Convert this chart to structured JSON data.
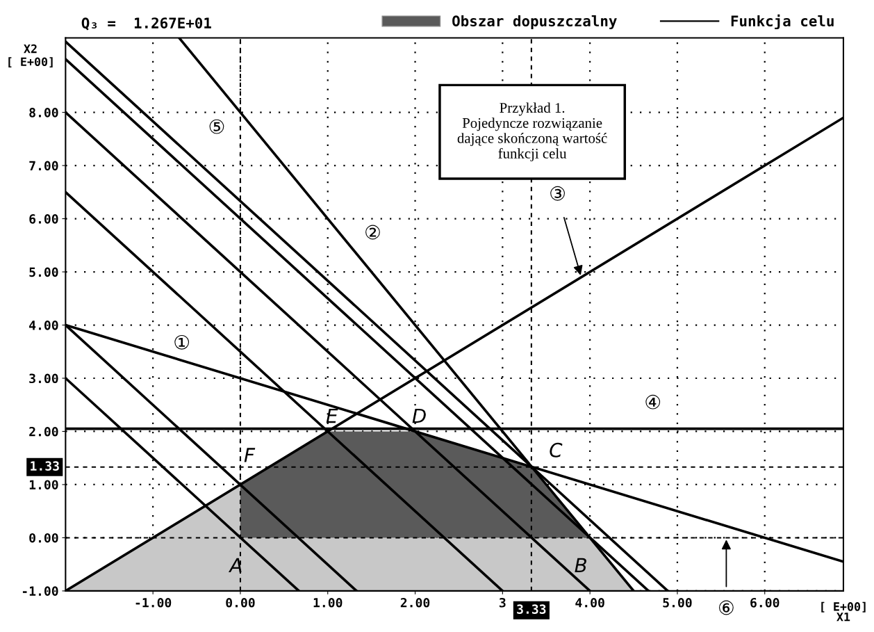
{
  "chart_data": {
    "type": "line",
    "title": "Q₃ =  1.267E+01",
    "xlabel": "[ E+00]\nX1",
    "ylabel": "X2\n[ E+00]",
    "xlim": [
      -2,
      6.9
    ],
    "ylim": [
      -1,
      9.4
    ],
    "xticks": [
      {
        "value": -1,
        "label": "-1.00"
      },
      {
        "value": 0,
        "label": "0.00"
      },
      {
        "value": 1,
        "label": "1.00"
      },
      {
        "value": 2,
        "label": "2.00"
      },
      {
        "value": 3,
        "label": "3"
      },
      {
        "value": 4,
        "label": "4.00"
      },
      {
        "value": 5,
        "label": "5.00"
      },
      {
        "value": 6,
        "label": "6.00"
      }
    ],
    "yticks": [
      {
        "value": -1,
        "label": "-1.00"
      },
      {
        "value": 0,
        "label": "0.00"
      },
      {
        "value": 1,
        "label": "1.00"
      },
      {
        "value": 2,
        "label": "2.00"
      },
      {
        "value": 3,
        "label": "3.00"
      },
      {
        "value": 4,
        "label": "4.00"
      },
      {
        "value": 5,
        "label": "5.00"
      },
      {
        "value": 6,
        "label": "6.00"
      },
      {
        "value": 7,
        "label": "7.00"
      },
      {
        "value": 8,
        "label": "8.00"
      }
    ],
    "grid": true,
    "legend": "top",
    "series": [
      {
        "type": "area",
        "color": "#c8c8c8",
        "x": [
          -2,
          0,
          0,
          4,
          4.5
        ],
        "values": [
          -1,
          1,
          0,
          0,
          -1
        ]
      },
      {
        "type": "area",
        "name": "Obszar dopuszczalny",
        "color": "#5a5a5a",
        "x": [
          0,
          0,
          1,
          2,
          3.33,
          4
        ],
        "values": [
          0,
          1,
          2,
          2,
          1.33,
          0
        ]
      },
      {
        "color": "#000000",
        "x": [
          -2,
          6.9
        ],
        "values": [
          4,
          -0.45
        ]
      },
      {
        "color": "#000000",
        "x": [
          -0.7,
          4.5
        ],
        "values": [
          9.4,
          -1
        ]
      },
      {
        "color": "#000000",
        "x": [
          -2,
          6.9
        ],
        "values": [
          -1,
          7.9
        ]
      },
      {
        "color": "#000000",
        "x": [
          -2,
          6.9
        ],
        "values": [
          2.05,
          2.05
        ]
      },
      {
        "color": "#000000",
        "x": [
          -2,
          0.67
        ],
        "values": [
          3,
          -1
        ]
      },
      {
        "color": "#000000",
        "x": [
          -2,
          1.33
        ],
        "values": [
          4,
          -1
        ]
      },
      {
        "color": "#000000",
        "x": [
          -2,
          3
        ],
        "values": [
          6.5,
          -1
        ]
      },
      {
        "color": "#000000",
        "x": [
          -2,
          4
        ],
        "values": [
          8,
          -1
        ]
      },
      {
        "color": "#000000",
        "x": [
          -2,
          4.67
        ],
        "values": [
          9,
          -1
        ]
      },
      {
        "name": "Funkcja celu",
        "color": "#000000",
        "x": [
          -2,
          4.89
        ],
        "values": [
          9.33,
          -1
        ]
      }
    ],
    "ref_lines": [
      {
        "axis": "x",
        "value": 3.33,
        "label": "3.33",
        "line_style": "dashed"
      },
      {
        "axis": "y",
        "value": 1.33,
        "label": "1.33",
        "line_style": "dashed"
      },
      {
        "axis": "x",
        "value": 0,
        "line_style": "dashed"
      },
      {
        "axis": "y",
        "value": 0,
        "line_style": "dashed"
      }
    ],
    "annotations": [
      "Przykład 1.\nPojedyncze rozwiązanie\ndające skończoną wartość\nfunkcji celu",
      {
        "text": "①",
        "x": -0.67,
        "y": 3.33
      },
      {
        "text": "②",
        "x": 1.3,
        "y": 5.4
      },
      {
        "text": "③",
        "x": 3.9,
        "y": 4.9
      },
      {
        "text": "④",
        "x": 4.72,
        "y": 2.05
      },
      {
        "text": "⑤",
        "x": 0,
        "y": 7.7
      },
      {
        "text": "⑥",
        "x": 5.56,
        "y": 0
      },
      {
        "text": "A",
        "x": 0,
        "y": 0
      },
      {
        "text": "B",
        "x": 4,
        "y": 0
      },
      {
        "text": "C",
        "x": 3.33,
        "y": 1.33
      },
      {
        "text": "D",
        "x": 2,
        "y": 2
      },
      {
        "text": "E",
        "x": 1,
        "y": 2
      },
      {
        "text": "F",
        "x": 0,
        "y": 1
      }
    ]
  }
}
